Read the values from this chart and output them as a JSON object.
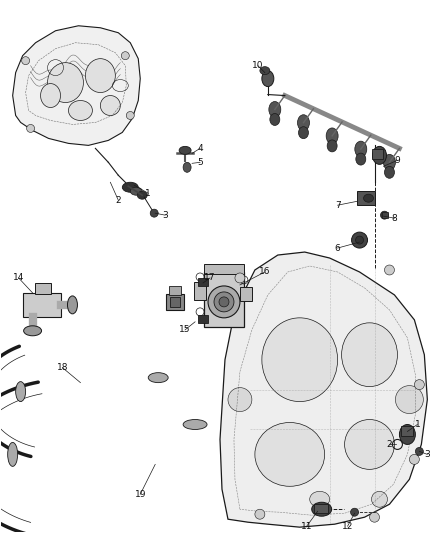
{
  "background_color": "#ffffff",
  "fig_width": 4.38,
  "fig_height": 5.33,
  "dpi": 100,
  "line_color": "#1a1a1a",
  "label_fontsize": 7
}
